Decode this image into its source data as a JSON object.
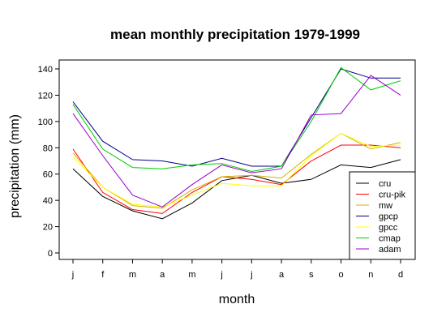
{
  "chart_data": {
    "type": "line",
    "title": "mean monthly precipitation 1979-1999",
    "xlabel": "month",
    "ylabel": "precipitation (mm)",
    "categories": [
      "j",
      "f",
      "m",
      "a",
      "m",
      "j",
      "j",
      "a",
      "s",
      "o",
      "n",
      "d"
    ],
    "ylim": [
      0,
      145
    ],
    "yticks": [
      0,
      20,
      40,
      60,
      80,
      100,
      120,
      140
    ],
    "grid": false,
    "legend_position": "bottom-right",
    "series": [
      {
        "name": "cru",
        "color": "#000000",
        "values": [
          64,
          43,
          32,
          26,
          38,
          55,
          59,
          53,
          56,
          67,
          65,
          71
        ]
      },
      {
        "name": "cru-pik",
        "color": "#ff0000",
        "values": [
          79,
          46,
          33,
          30,
          46,
          58,
          56,
          52,
          70,
          82,
          82,
          80
        ]
      },
      {
        "name": "mw",
        "color": "#d4b000",
        "values": [
          76,
          50,
          36,
          34,
          48,
          58,
          59,
          57,
          75,
          91,
          79,
          84
        ]
      },
      {
        "name": "gpcp",
        "color": "#00008b",
        "values": [
          115,
          85,
          71,
          70,
          66,
          72,
          66,
          66,
          103,
          140,
          133,
          133
        ]
      },
      {
        "name": "gpcc",
        "color": "#ffff00",
        "values": [
          73,
          50,
          37,
          35,
          44,
          53,
          51,
          51,
          74,
          91,
          81,
          82
        ]
      },
      {
        "name": "cmap",
        "color": "#00cc00",
        "values": [
          113,
          79,
          65,
          64,
          67,
          68,
          62,
          66,
          100,
          141,
          124,
          131
        ]
      },
      {
        "name": "adam",
        "color": "#9900cc",
        "values": [
          106,
          74,
          44,
          35,
          52,
          67,
          61,
          64,
          105,
          106,
          135,
          120
        ]
      }
    ]
  }
}
